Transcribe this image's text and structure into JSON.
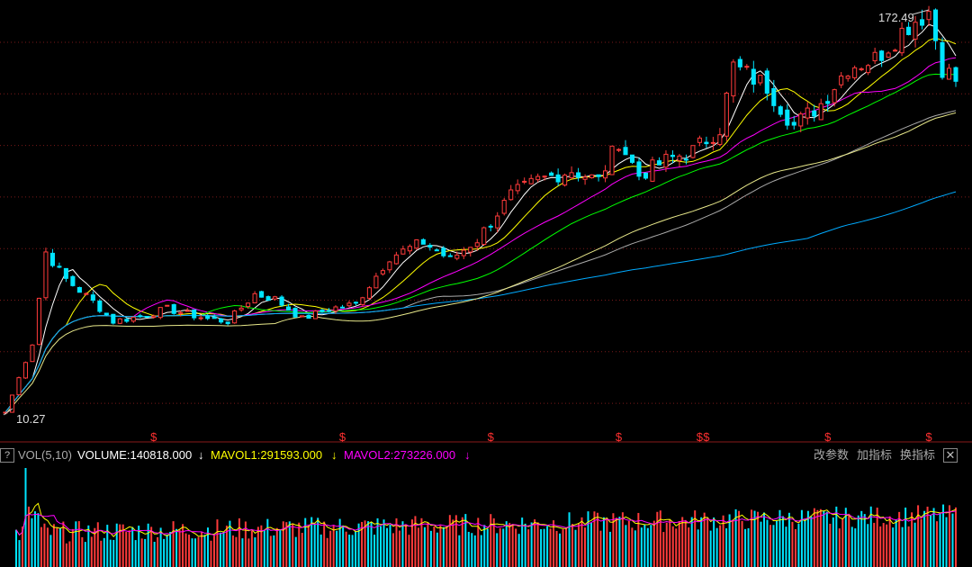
{
  "chart_data": {
    "type": "candlestick",
    "price_high_label": "172.49",
    "price_low_label": "10.27",
    "high": 172.49,
    "low": 10.27,
    "dividend_marker": "$",
    "colors": {
      "up": "#ff3b3b",
      "down": "#00e5ff",
      "ma5": "#ffffff",
      "ma10": "#ffff00",
      "ma20": "#ff00ff",
      "ma30": "#00ff00",
      "ma60": "#aaaaaa",
      "ma120": "#00aaff",
      "ma250": "#e8e88a",
      "grid": "#7a1a1a"
    },
    "trend": [
      [
        0,
        10.27
      ],
      [
        4,
        38
      ],
      [
        6,
        75
      ],
      [
        9,
        64
      ],
      [
        13,
        55
      ],
      [
        16,
        47
      ],
      [
        20,
        49
      ],
      [
        24,
        52
      ],
      [
        27,
        50
      ],
      [
        30,
        48
      ],
      [
        33,
        47
      ],
      [
        37,
        58
      ],
      [
        40,
        56
      ],
      [
        44,
        48
      ],
      [
        48,
        52
      ],
      [
        52,
        54
      ],
      [
        57,
        73
      ],
      [
        62,
        79
      ],
      [
        66,
        72
      ],
      [
        70,
        80
      ],
      [
        75,
        98
      ],
      [
        79,
        104
      ],
      [
        84,
        108
      ],
      [
        88,
        104
      ],
      [
        91,
        120
      ],
      [
        94,
        106
      ],
      [
        98,
        112
      ],
      [
        102,
        116
      ],
      [
        106,
        125
      ],
      [
        108,
        150
      ],
      [
        113,
        142
      ],
      [
        117,
        126
      ],
      [
        121,
        135
      ],
      [
        125,
        150
      ],
      [
        129,
        153
      ],
      [
        134,
        167
      ],
      [
        137,
        172.49
      ],
      [
        139,
        150
      ],
      [
        141,
        144
      ]
    ],
    "volume": {
      "label": "VOL(5,10)",
      "volume_text": "VOLUME:140818.000",
      "mavol1_text": "MAVOL1:291593.000",
      "mavol2_text": "MAVOL2:273226.000",
      "arrow": "↓"
    }
  },
  "toolbar": {
    "help": "?",
    "change_params": "改参数",
    "add_indicator": "加指标",
    "switch_indicator": "换指标",
    "close": "✕"
  }
}
